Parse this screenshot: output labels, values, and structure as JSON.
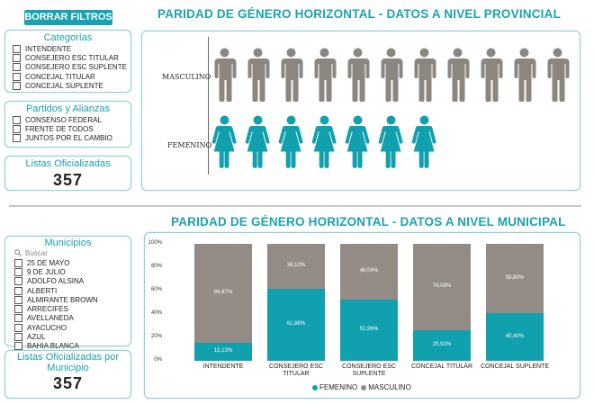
{
  "buttons": {
    "clear_filters": "BORRAR FILTROS"
  },
  "provincial": {
    "title": "PARIDAD DE GÉNERO HORIZONTAL - DATOS A NIVEL PROVINCIAL",
    "male_label": "MASCULINO",
    "female_label": "FEMENINO",
    "male_icon_count": 11,
    "female_icon_count": 7,
    "male_color": "#8b8680",
    "female_color": "#11a0ad"
  },
  "categorias": {
    "title": "Categorías",
    "items": [
      "INTENDENTE",
      "CONSEJERO ESC TITULAR",
      "CONSEJERO ESC SUPLENTE",
      "CONCEJAL TITULAR",
      "CONCEJAL SUPLENTE"
    ]
  },
  "partidos": {
    "title": "Partidos y Alianzas",
    "items": [
      "CONSENSO FEDERAL",
      "FRENTE DE TODOS",
      "JUNTOS POR EL CAMBIO"
    ]
  },
  "listas": {
    "label": "Listas Oficializadas",
    "value": "357"
  },
  "municipal": {
    "title": "PARIDAD DE GÉNERO HORIZONTAL - DATOS A NIVEL MUNICIPAL"
  },
  "municipios": {
    "title": "Municipios",
    "search_placeholder": "Buscar",
    "items": [
      "25 DE MAYO",
      "9 DE JULIO",
      "ADOLFO ALSINA",
      "ALBERTI",
      "ALMIRANTE BROWN",
      "ARRECIFES",
      "AVELLANEDA",
      "AYACUCHO",
      "AZUL",
      "BAHIA BLANCA"
    ]
  },
  "listas_municipio": {
    "label": "Listas Oficializadas por Municipio",
    "value": "357"
  },
  "chart_data": {
    "type": "bar",
    "stacked": true,
    "percent": true,
    "categories": [
      "INTENDENTE",
      "CONSEJERO ESC TITULAR",
      "CONSEJERO ESC SUPLENTE",
      "CONCEJAL TITULAR",
      "CONCEJAL SUPLENTE"
    ],
    "category_lines": [
      [
        "INTENDENTE"
      ],
      [
        "CONSEJERO ESC",
        "TITULAR"
      ],
      [
        "CONSEJERO ESC",
        "SUPLENTE"
      ],
      [
        "CONCEJAL TITULAR"
      ],
      [
        "CONCEJAL SUPLENTE"
      ]
    ],
    "series": [
      {
        "name": "FEMENINO",
        "color": "#11a0ad",
        "values": [
          15.13,
          61.88,
          51.96,
          25.91,
          40.4
        ],
        "labels": [
          "15,13%",
          "61,88%",
          "51,96%",
          "25,91%",
          "40,40%"
        ]
      },
      {
        "name": "MASCULINO",
        "color": "#938c86",
        "values": [
          84.87,
          38.12,
          48.04,
          74.09,
          59.6
        ],
        "labels": [
          "84,87%",
          "38,12%",
          "48,04%",
          "74,09%",
          "59,60%"
        ]
      }
    ],
    "yticks": [
      "100%",
      "80%",
      "60%",
      "40%",
      "20%",
      "0%"
    ],
    "ylim": [
      0,
      100
    ],
    "legend_position": "bottom",
    "grid": false
  }
}
